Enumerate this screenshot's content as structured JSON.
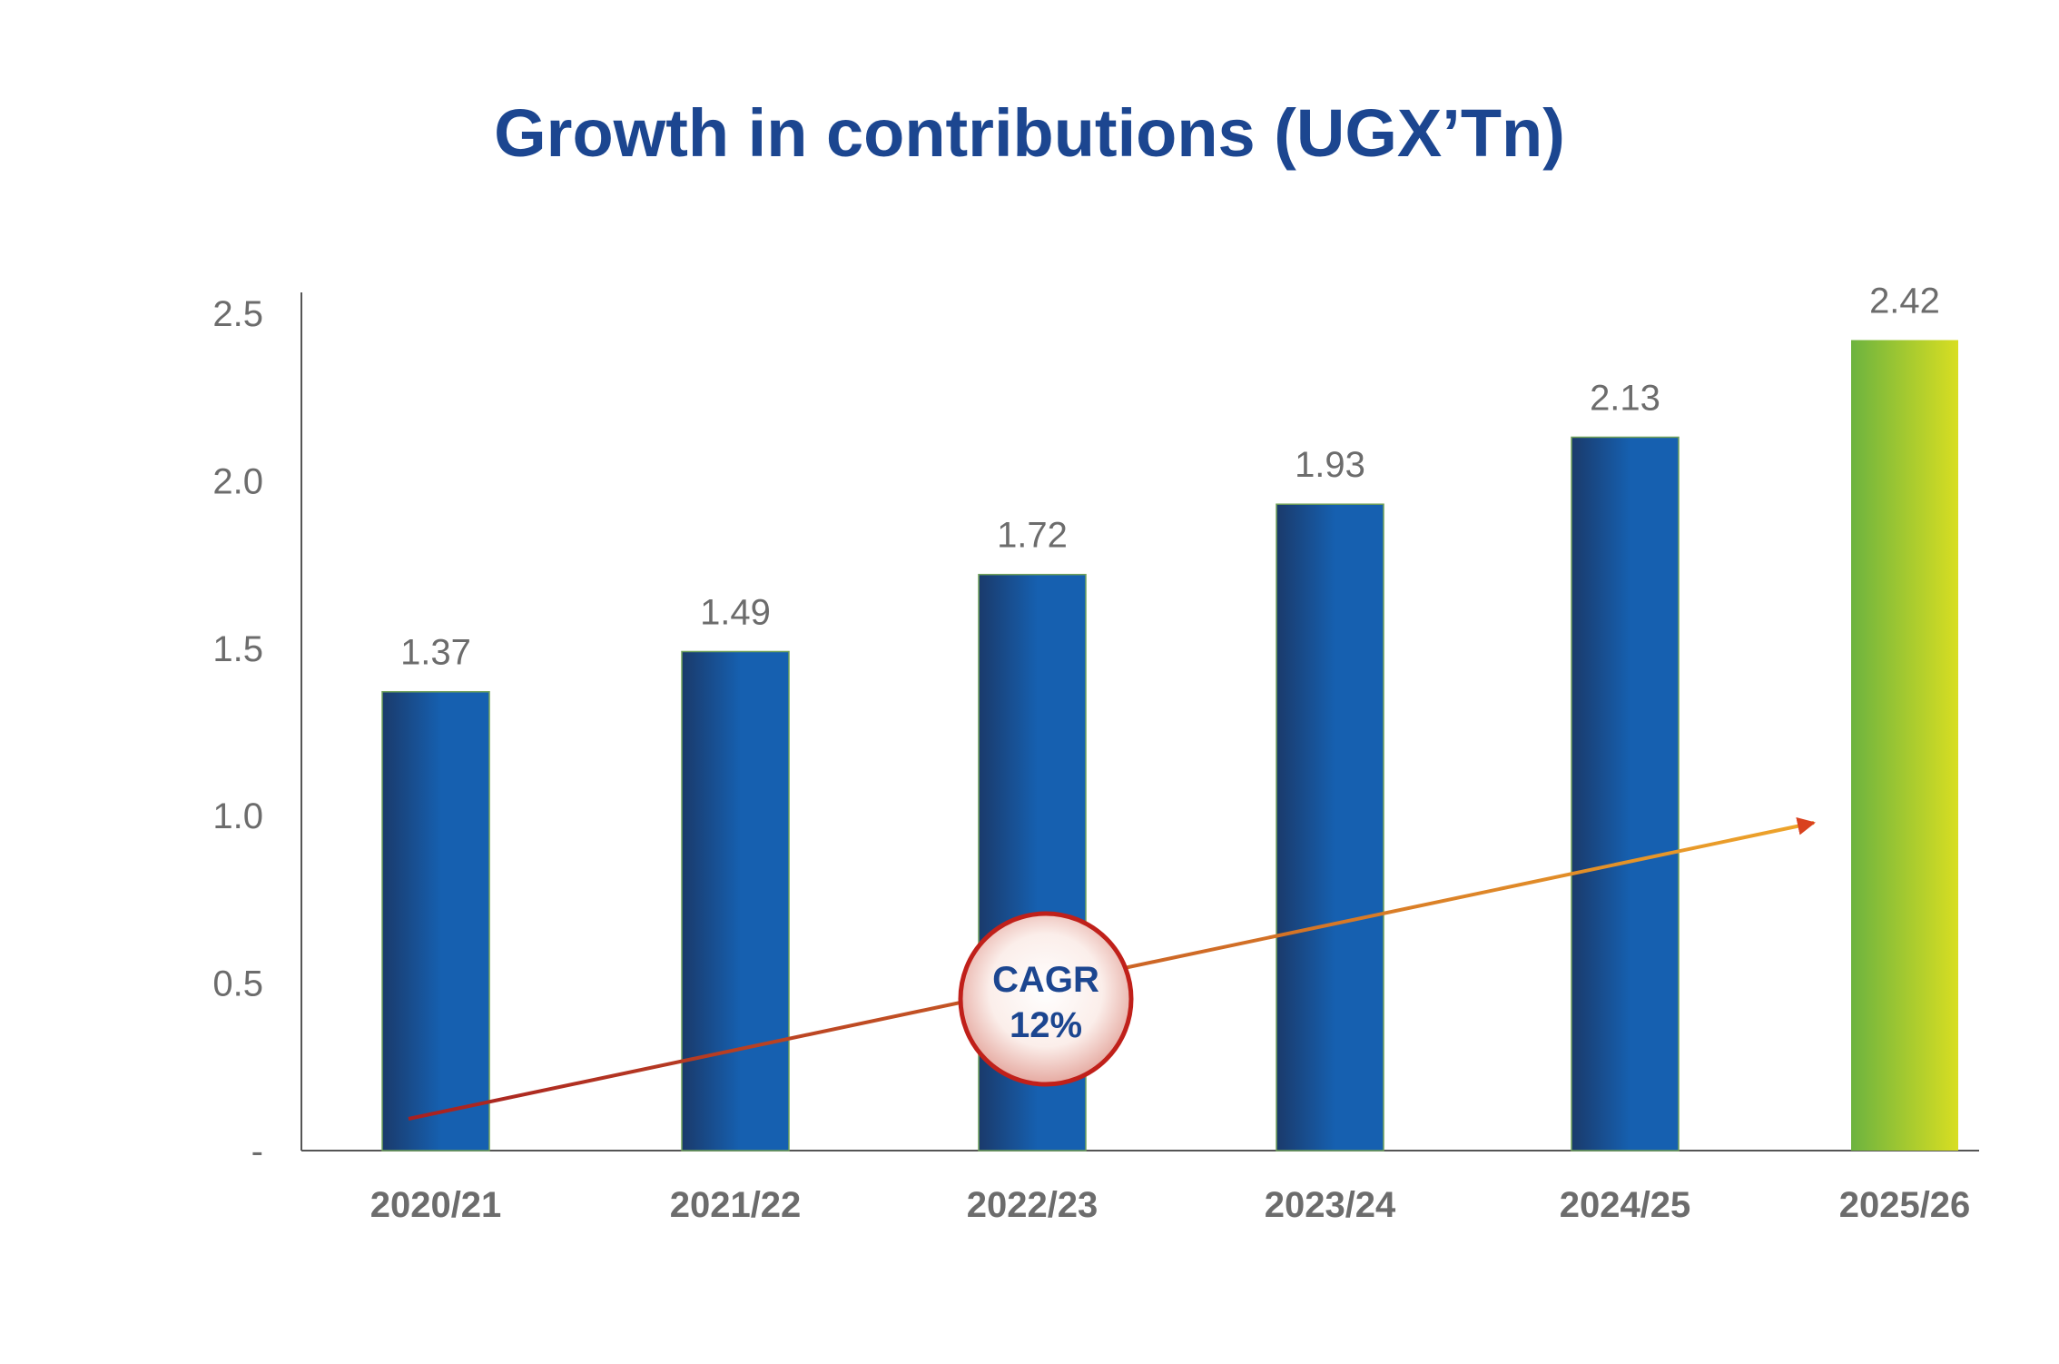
{
  "chart_data": {
    "type": "bar",
    "title": "Growth in contributions (UGX’Tn)",
    "xlabel": "",
    "ylabel": "",
    "categories": [
      "2020/21",
      "2021/22",
      "2022/23",
      "2023/24",
      "2024/25",
      "2025/26"
    ],
    "values": [
      1.37,
      1.49,
      1.72,
      1.93,
      2.13,
      2.42
    ],
    "data_labels": [
      "1.37",
      "1.49",
      "1.72",
      "1.93",
      "2.13",
      "2.42"
    ],
    "ylim": [
      0,
      2.5
    ],
    "y_ticks": [
      0,
      0.5,
      1.0,
      1.5,
      2.0,
      2.5
    ],
    "y_tick_labels": [
      "-",
      "0.5",
      "1.0",
      "1.5",
      "2.0",
      "2.5"
    ],
    "grid": false,
    "legend": "none",
    "highlight_category": "2025/26",
    "annotation": {
      "type": "trend-arrow",
      "label_line1": "CAGR",
      "label_line2": "12%"
    },
    "colors": {
      "title": "#1c4690",
      "bar_dark": "#1a3a6b",
      "bar_light": "#1660b0",
      "highlight_start": "#6db33f",
      "highlight_end": "#d8de22",
      "arrow_start": "#a82020",
      "arrow_end": "#eea52a",
      "badge_border": "#c0201a",
      "axis_text": "#6c6c6c",
      "axis_line": "#555555"
    }
  }
}
